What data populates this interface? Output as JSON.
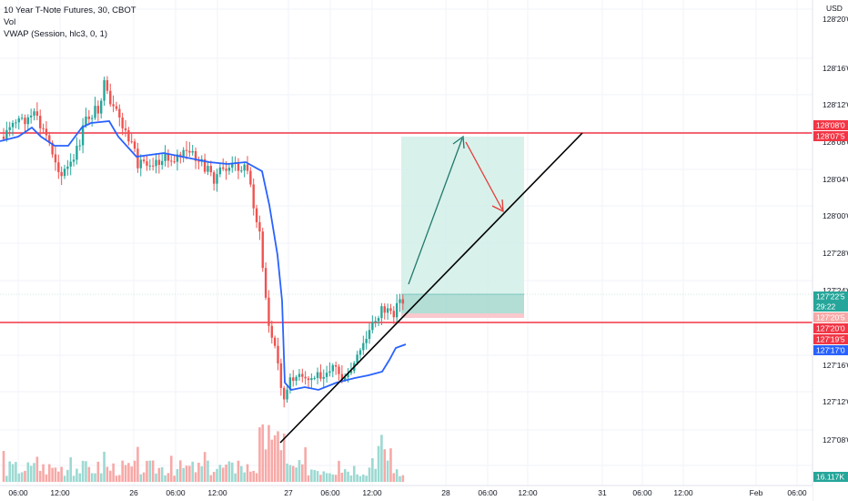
{
  "header": {
    "symbol_line": "10 Year T-Note Futures, 30, CBOT",
    "vol_label": "Vol",
    "vwap_label": "VWAP (Session, hlc3, 0, 1)"
  },
  "price_axis": {
    "currency": "USD",
    "ticks": [
      "128'20'0",
      "128'16'0",
      "128'12'0",
      "128'08'0",
      "128'04'0",
      "128'00'0",
      "127'28'0",
      "127'24'0",
      "127'16'0",
      "127'12'0",
      "127'08'0",
      "127'04'0"
    ]
  },
  "badges": {
    "upper_line_a": "128'08'0",
    "upper_line_b": "128'07'5",
    "last_price": "127'22'5",
    "countdown": "29:22",
    "stop_level": "127'20'5",
    "lower_line_a": "127'20'0",
    "lower_line_b": "127'19'5",
    "vwap_value": "127'17'0",
    "volume_value": "16.117K"
  },
  "time_axis": {
    "labels": [
      "06:00",
      "12:00",
      "26",
      "06:00",
      "12:00",
      "27",
      "06:00",
      "12:00",
      "28",
      "06:00",
      "12:00",
      "31",
      "06:00",
      "12:00",
      "Feb",
      "06:00"
    ]
  },
  "colors": {
    "up": "#26a69a",
    "down": "#ef5350",
    "vwap": "#2962ff",
    "hline": "#f23645",
    "target_zone": "#d5efe9",
    "entry_zone": "#9fd6cc",
    "stop_zone": "#f9c9cd",
    "trendline": "#000000"
  }
}
